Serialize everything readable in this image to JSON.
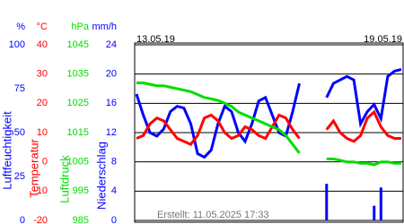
{
  "chart_data": {
    "type": "line",
    "start_label": "13.05.19",
    "end_label": "19.05.19",
    "footer": "Erstellt: 11.05.2025 17:33",
    "grid": true,
    "axes": [
      {
        "title": "Luftfeuchtigkeit",
        "unit": "%",
        "color": "#0000ff",
        "ylim": [
          0,
          100
        ],
        "yticks": [
          0,
          25,
          50,
          75,
          100
        ]
      },
      {
        "title": "Temperatur",
        "unit": "°C",
        "color": "#ff0000",
        "ylim": [
          -20,
          40
        ],
        "yticks": [
          -20,
          -10,
          0,
          10,
          20,
          30,
          40
        ]
      },
      {
        "title": "Luftdruck",
        "unit": "hPa",
        "color": "#00dd00",
        "ylim": [
          985,
          1045
        ],
        "yticks": [
          985,
          995,
          1005,
          1015,
          1025,
          1035,
          1045
        ]
      },
      {
        "title": "Niederschlag",
        "unit": "mm/h",
        "color": "#0000ff",
        "ylim": [
          0,
          24
        ],
        "yticks": [
          0,
          4,
          8,
          12,
          16,
          20,
          24
        ]
      }
    ],
    "series": [
      {
        "axis": 0,
        "style": "line",
        "color": "#0000ff",
        "values": [
          72,
          60,
          50,
          48,
          52,
          62,
          65,
          64,
          55,
          38,
          36,
          40,
          55,
          65,
          62,
          50,
          45,
          55,
          68,
          70,
          60,
          50,
          48,
          62,
          78,
          null,
          null,
          null,
          70,
          78,
          80,
          82,
          80,
          55,
          62,
          66,
          58,
          82,
          85,
          86
        ]
      },
      {
        "axis": 1,
        "style": "line",
        "color": "#ff0000",
        "values": [
          8,
          9,
          13,
          15,
          14,
          11,
          8,
          7,
          6,
          9,
          15,
          16,
          14,
          10,
          8,
          9,
          12,
          11,
          9,
          8,
          12,
          16,
          15,
          11,
          8,
          null,
          null,
          null,
          11,
          14,
          10,
          8,
          7,
          9,
          15,
          17,
          12,
          9,
          8,
          8
        ]
      },
      {
        "axis": 2,
        "style": "line",
        "color": "#00dd00",
        "values": [
          1032,
          1032,
          1031.5,
          1031,
          1031,
          1030.5,
          1030,
          1029.5,
          1029,
          1028,
          1027,
          1026.5,
          1026,
          1025,
          1024,
          1022,
          1021,
          1020,
          1019,
          1018,
          1017,
          1016,
          1014,
          1011,
          1008,
          null,
          null,
          null,
          1006,
          1006,
          1005.5,
          1005,
          1005,
          1004.5,
          1004.5,
          1004,
          1005,
          1005,
          1004.5,
          1004.5
        ]
      },
      {
        "axis": 3,
        "style": "bar",
        "color": "#0000ff",
        "values": [
          0,
          0,
          0,
          0,
          0,
          0,
          0,
          0,
          0,
          0,
          0,
          0,
          0,
          0,
          0,
          0,
          0,
          0,
          0,
          0,
          0,
          0,
          0,
          0,
          0,
          null,
          null,
          null,
          5,
          0,
          0,
          0,
          0,
          0,
          0,
          2,
          4.5,
          0,
          0,
          0
        ]
      }
    ]
  }
}
